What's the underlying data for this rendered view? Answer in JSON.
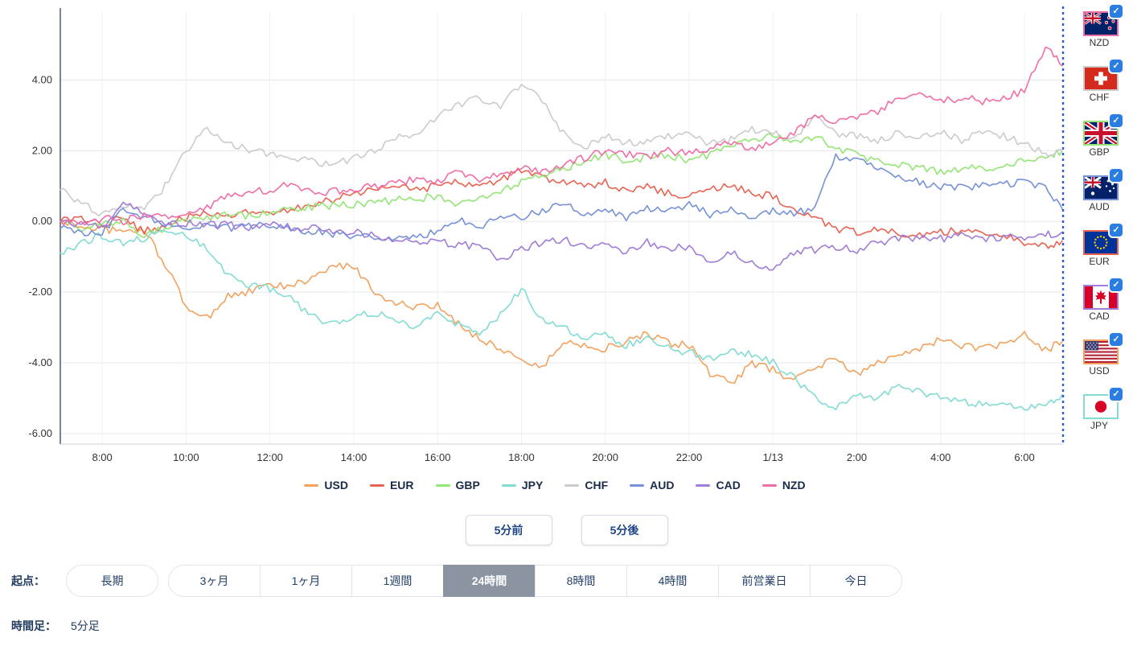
{
  "colors": {
    "checkbox": "#2a7de1",
    "dotted_line": "#2d5bd8",
    "selected_button_bg": "#8b94a1",
    "axis_text": "#333333"
  },
  "icons": {
    "checkbox_check": "✓"
  },
  "chart_data": {
    "type": "line",
    "title": "",
    "xlabel": "",
    "ylabel": "",
    "grid": true,
    "legend_position": "bottom",
    "x_unit": "hours since 7:00",
    "xlim": [
      0,
      23.92
    ],
    "ylim": [
      -6.3,
      5.9
    ],
    "xticks": [
      {
        "pos": 1,
        "label": "8:00"
      },
      {
        "pos": 3,
        "label": "10:00"
      },
      {
        "pos": 5,
        "label": "12:00"
      },
      {
        "pos": 7,
        "label": "14:00"
      },
      {
        "pos": 9,
        "label": "16:00"
      },
      {
        "pos": 11,
        "label": "18:00"
      },
      {
        "pos": 13,
        "label": "20:00"
      },
      {
        "pos": 15,
        "label": "22:00"
      },
      {
        "pos": 17,
        "label": "1/13"
      },
      {
        "pos": 19,
        "label": "2:00"
      },
      {
        "pos": 21,
        "label": "4:00"
      },
      {
        "pos": 23,
        "label": "6:00"
      }
    ],
    "yticks": [
      {
        "pos": 4,
        "label": "4.00"
      },
      {
        "pos": 2,
        "label": "2.00"
      },
      {
        "pos": 0,
        "label": "0.00"
      },
      {
        "pos": -2,
        "label": "-2.00"
      },
      {
        "pos": -4,
        "label": "-4.00"
      },
      {
        "pos": -6,
        "label": "-6.00"
      }
    ],
    "x": [
      0,
      0.5,
      1,
      1.5,
      2,
      2.5,
      3,
      3.5,
      4,
      4.5,
      5,
      5.5,
      6,
      6.5,
      7,
      7.5,
      8,
      8.5,
      9,
      9.5,
      10,
      10.5,
      11,
      11.5,
      12,
      12.5,
      13,
      13.5,
      14,
      14.5,
      15,
      15.5,
      16,
      16.5,
      17,
      17.5,
      18,
      18.5,
      19,
      19.5,
      20,
      20.5,
      21,
      21.5,
      22,
      22.5,
      23,
      23.5,
      23.9
    ],
    "series": [
      {
        "name": "USD",
        "color": "#f2a25e",
        "values": [
          0.0,
          -0.15,
          -0.2,
          -0.3,
          -0.25,
          -1.2,
          -2.4,
          -2.75,
          -2.1,
          -2.0,
          -1.8,
          -1.85,
          -1.6,
          -1.3,
          -1.25,
          -2.0,
          -2.3,
          -2.45,
          -2.4,
          -2.9,
          -3.3,
          -3.6,
          -3.9,
          -4.15,
          -3.4,
          -3.5,
          -3.6,
          -3.4,
          -3.2,
          -3.45,
          -3.5,
          -4.3,
          -4.6,
          -4.0,
          -4.2,
          -4.5,
          -4.1,
          -3.9,
          -4.35,
          -4.0,
          -3.7,
          -3.6,
          -3.35,
          -3.5,
          -3.6,
          -3.5,
          -3.2,
          -3.65,
          -3.4
        ]
      },
      {
        "name": "EUR",
        "color": "#ea6352",
        "values": [
          0.0,
          0.05,
          -0.1,
          0.1,
          -0.3,
          -0.1,
          0.1,
          0.2,
          0.15,
          0.25,
          0.2,
          0.35,
          0.5,
          0.6,
          0.8,
          0.9,
          1.0,
          0.9,
          1.0,
          1.1,
          1.0,
          1.2,
          1.45,
          1.2,
          1.1,
          1.0,
          1.1,
          0.9,
          1.0,
          0.8,
          0.7,
          0.9,
          1.0,
          0.8,
          0.7,
          0.3,
          0.1,
          -0.2,
          -0.3,
          -0.2,
          -0.3,
          -0.4,
          -0.3,
          -0.25,
          -0.3,
          -0.4,
          -0.6,
          -0.7,
          -0.55
        ]
      },
      {
        "name": "GBP",
        "color": "#93e575",
        "values": [
          0.0,
          -0.2,
          -0.1,
          0.0,
          -0.4,
          -0.2,
          0.0,
          0.1,
          0.2,
          0.15,
          0.3,
          0.35,
          0.4,
          0.45,
          0.5,
          0.55,
          0.6,
          0.65,
          0.7,
          0.5,
          0.6,
          0.9,
          1.1,
          1.3,
          1.5,
          1.7,
          1.9,
          1.7,
          1.8,
          1.9,
          1.7,
          1.9,
          2.1,
          2.3,
          2.45,
          2.2,
          2.4,
          2.1,
          1.9,
          1.7,
          1.6,
          1.5,
          1.4,
          1.5,
          1.5,
          1.6,
          1.7,
          1.8,
          2.0
        ]
      },
      {
        "name": "JPY",
        "color": "#82dcd2",
        "values": [
          -0.9,
          -0.6,
          -0.4,
          -0.6,
          -0.5,
          -0.2,
          -0.4,
          -0.8,
          -1.5,
          -1.8,
          -1.9,
          -2.2,
          -2.7,
          -2.9,
          -2.7,
          -2.6,
          -2.8,
          -3.0,
          -2.6,
          -2.9,
          -3.2,
          -2.6,
          -1.9,
          -2.8,
          -3.0,
          -3.3,
          -3.2,
          -3.5,
          -3.3,
          -3.6,
          -3.7,
          -3.9,
          -3.6,
          -3.8,
          -4.0,
          -4.4,
          -5.0,
          -5.3,
          -4.9,
          -5.0,
          -4.7,
          -4.8,
          -5.0,
          -5.1,
          -5.2,
          -5.1,
          -5.3,
          -5.2,
          -4.9
        ]
      },
      {
        "name": "CHF",
        "color": "#cbcbcb",
        "values": [
          0.9,
          0.5,
          0.2,
          0.4,
          0.3,
          1.0,
          2.0,
          2.6,
          2.2,
          2.0,
          1.9,
          1.8,
          1.7,
          1.6,
          1.8,
          2.0,
          2.4,
          2.5,
          3.0,
          3.3,
          3.5,
          3.2,
          3.95,
          3.4,
          2.5,
          2.1,
          2.4,
          2.2,
          2.3,
          2.4,
          2.5,
          2.2,
          2.3,
          2.6,
          2.5,
          2.3,
          3.0,
          2.5,
          2.4,
          2.3,
          2.5,
          2.4,
          2.5,
          2.3,
          2.5,
          2.4,
          2.2,
          1.9,
          2.0
        ]
      },
      {
        "name": "AUD",
        "color": "#7691d8",
        "values": [
          -0.2,
          -0.35,
          -0.3,
          0.3,
          0.1,
          -0.1,
          -0.15,
          -0.1,
          -0.2,
          -0.15,
          -0.1,
          -0.2,
          -0.3,
          -0.35,
          -0.4,
          -0.45,
          -0.5,
          -0.4,
          -0.3,
          0.1,
          -0.2,
          0.2,
          0.1,
          0.3,
          0.5,
          0.2,
          0.3,
          0.1,
          0.4,
          0.3,
          0.5,
          0.2,
          0.4,
          0.1,
          0.3,
          0.2,
          0.4,
          1.8,
          1.7,
          1.5,
          1.3,
          1.1,
          1.0,
          0.95,
          1.0,
          1.05,
          1.1,
          1.0,
          0.35
        ]
      },
      {
        "name": "CAD",
        "color": "#9f7dd8",
        "values": [
          0.0,
          -0.1,
          -0.15,
          0.6,
          0.2,
          0.0,
          -0.05,
          -0.1,
          -0.1,
          -0.15,
          -0.1,
          -0.15,
          -0.2,
          -0.25,
          -0.3,
          -0.4,
          -0.5,
          -0.55,
          -0.6,
          -0.65,
          -0.7,
          -1.05,
          -0.8,
          -0.6,
          -0.5,
          -0.7,
          -0.6,
          -0.9,
          -0.6,
          -0.8,
          -0.7,
          -1.1,
          -0.9,
          -1.2,
          -1.4,
          -0.9,
          -0.8,
          -0.7,
          -0.8,
          -0.6,
          -0.5,
          -0.45,
          -0.5,
          -0.4,
          -0.5,
          -0.45,
          -0.5,
          -0.4,
          -0.3
        ]
      },
      {
        "name": "NZD",
        "color": "#f06ea6",
        "values": [
          0.0,
          -0.1,
          0.1,
          0.0,
          0.2,
          0.1,
          0.2,
          0.4,
          0.7,
          0.8,
          0.9,
          1.1,
          0.8,
          0.85,
          0.9,
          1.0,
          1.1,
          1.2,
          1.1,
          1.4,
          1.2,
          1.3,
          1.5,
          1.4,
          1.6,
          1.8,
          2.0,
          1.9,
          1.8,
          2.0,
          1.9,
          2.1,
          2.2,
          2.0,
          2.3,
          2.5,
          3.0,
          2.8,
          2.9,
          3.1,
          3.5,
          3.7,
          3.4,
          3.5,
          3.4,
          3.5,
          3.7,
          4.95,
          4.4
        ]
      }
    ]
  },
  "controls": {
    "back_label": "5分前",
    "forward_label": "5分後"
  },
  "origin": {
    "label": "起点：",
    "selected": "24時間",
    "buttons": [
      "長期",
      "3ヶ月",
      "1ヶ月",
      "1週間",
      "24時間",
      "8時間",
      "4時間",
      "前営業日",
      "今日"
    ]
  },
  "timeframe": {
    "label": "時間足：",
    "value": "5分足"
  },
  "sidebar": {
    "items": [
      {
        "code": "NZD",
        "checked": true
      },
      {
        "code": "CHF",
        "checked": true
      },
      {
        "code": "GBP",
        "checked": true
      },
      {
        "code": "AUD",
        "checked": true
      },
      {
        "code": "EUR",
        "checked": true
      },
      {
        "code": "CAD",
        "checked": true
      },
      {
        "code": "USD",
        "checked": true
      },
      {
        "code": "JPY",
        "checked": true
      }
    ]
  }
}
